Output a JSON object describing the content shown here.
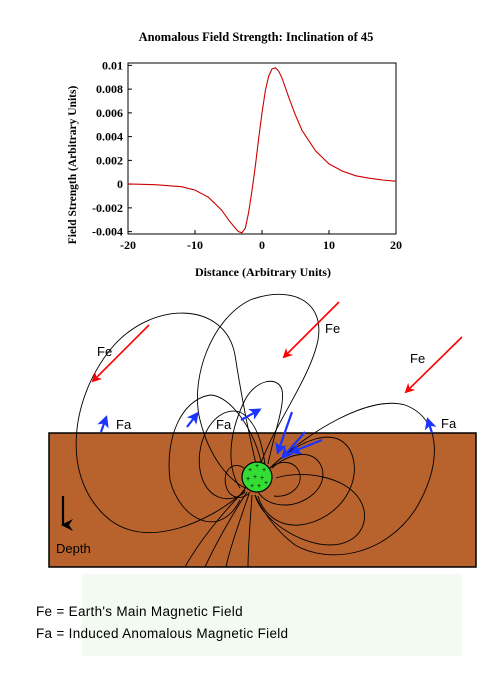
{
  "chart_data": {
    "type": "line",
    "title": "Anomalous Field Strength: Inclination of 45",
    "xlabel": "Distance (Arbitrary Units)",
    "ylabel": "Field Strength (Arbitrary Units)",
    "xlim": [
      -20,
      20
    ],
    "ylim": [
      -0.0042,
      0.0102
    ],
    "x_ticks": [
      "-20",
      "-10",
      "0",
      "10",
      "20"
    ],
    "y_ticks": [
      "0.01",
      "0.008",
      "0.006",
      "0.004",
      "0.002",
      "0",
      "-0.002",
      "-0.004"
    ],
    "grid": false,
    "series": [
      {
        "color": "#cc0000",
        "x": [
          -20,
          -16,
          -12,
          -10,
          -8,
          -6,
          -5,
          -4,
          -3.5,
          -3,
          -2.5,
          -2,
          -1.5,
          -1,
          -0.5,
          0,
          0.5,
          1,
          1.5,
          2,
          2.5,
          3,
          3.5,
          4,
          5,
          6,
          8,
          10,
          12,
          14,
          16,
          18,
          20
        ],
        "y": [
          2e-05,
          -5e-05,
          -0.00022,
          -0.0005,
          -0.0011,
          -0.0022,
          -0.003,
          -0.0037,
          -0.004,
          -0.0041,
          -0.0037,
          -0.0024,
          -0.0006,
          0.0015,
          0.0038,
          0.006,
          0.0079,
          0.0091,
          0.0097,
          0.0098,
          0.0095,
          0.0089,
          0.0081,
          0.0073,
          0.0058,
          0.0045,
          0.0028,
          0.0017,
          0.0011,
          0.0007,
          0.0005,
          0.00035,
          0.00025
        ]
      }
    ]
  },
  "diagram": {
    "labels": {
      "fe": "Fe",
      "fa": "Fa",
      "depth": "Depth"
    },
    "colors": {
      "earth": "#b8632d",
      "body": "#33dd33",
      "field_arrow": "#ff0000",
      "anomaly_arrow": "#1a33ff",
      "field_lines": "#000000"
    },
    "body_charges": "+"
  },
  "legend": {
    "line1": "Fe = Earth's Main Magnetic Field",
    "line2": "Fa = Induced Anomalous Magnetic Field"
  }
}
